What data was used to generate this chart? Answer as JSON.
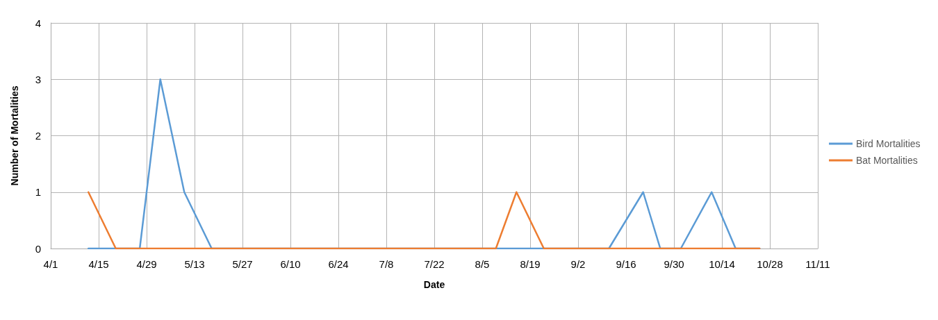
{
  "chart_data": {
    "type": "line",
    "xlabel": "Date",
    "ylabel": "Number of Mortalities",
    "xlim": [
      "--04-01",
      "--11-11"
    ],
    "xticks": [
      {
        "value": "--04-01",
        "label": "4/1"
      },
      {
        "value": "--04-15",
        "label": "4/15"
      },
      {
        "value": "--04-29",
        "label": "4/29"
      },
      {
        "value": "--05-13",
        "label": "5/13"
      },
      {
        "value": "--05-27",
        "label": "5/27"
      },
      {
        "value": "--06-10",
        "label": "6/10"
      },
      {
        "value": "--06-24",
        "label": "6/24"
      },
      {
        "value": "--07-08",
        "label": "7/8"
      },
      {
        "value": "--07-22",
        "label": "7/22"
      },
      {
        "value": "--08-05",
        "label": "8/5"
      },
      {
        "value": "--08-19",
        "label": "8/19"
      },
      {
        "value": "--09-02",
        "label": "9/2"
      },
      {
        "value": "--09-16",
        "label": "9/16"
      },
      {
        "value": "--09-30",
        "label": "9/30"
      },
      {
        "value": "--10-14",
        "label": "10/14"
      },
      {
        "value": "--10-28",
        "label": "10/28"
      },
      {
        "value": "--11-11",
        "label": "11/11"
      }
    ],
    "ylim": [
      0,
      4
    ],
    "yticks": [
      0,
      1,
      2,
      3,
      4
    ],
    "grid": true,
    "legend": "right",
    "marker": "none",
    "line_style": "solid",
    "series": [
      {
        "name": "Bird Mortalities",
        "color": "#5b9bd5",
        "x": [
          "--04-12",
          "--04-20",
          "--04-27",
          "--05-03",
          "--05-10",
          "--05-18",
          "--09-11",
          "--09-21",
          "--09-26",
          "--10-02",
          "--10-11",
          "--10-18",
          "--10-25"
        ],
        "values": [
          0,
          0,
          0,
          3,
          1,
          0,
          0,
          1,
          0,
          0,
          1,
          0,
          0
        ]
      },
      {
        "name": "Bat Mortalities",
        "color": "#ed7d31",
        "x": [
          "--04-12",
          "--04-20",
          "--08-09",
          "--08-15",
          "--08-23",
          "--10-25"
        ],
        "values": [
          1,
          0,
          0,
          1,
          0,
          0
        ]
      }
    ]
  }
}
